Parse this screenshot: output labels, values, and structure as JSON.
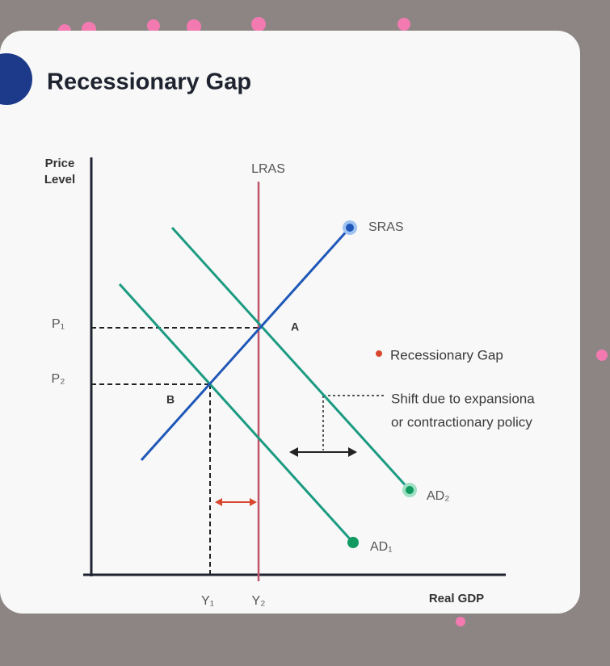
{
  "header": {
    "title": "Recessionary Gap"
  },
  "axes": {
    "y_label_line1": "Price",
    "y_label_line2": "Level",
    "x_label": "Real GDP"
  },
  "curves": {
    "lras": "LRAS",
    "sras": "SRAS",
    "ad1": "AD₁",
    "ad2": "AD₂"
  },
  "levels": {
    "p1": "P₁",
    "p2": "P₂",
    "y1": "Y₁",
    "y2": "Y₂"
  },
  "points": {
    "a": "A",
    "b": "B"
  },
  "legend": {
    "gap": "Recessionary Gap",
    "shift_line1": "Shift due to expansiona",
    "shift_line2": "or contractionary policy"
  }
}
